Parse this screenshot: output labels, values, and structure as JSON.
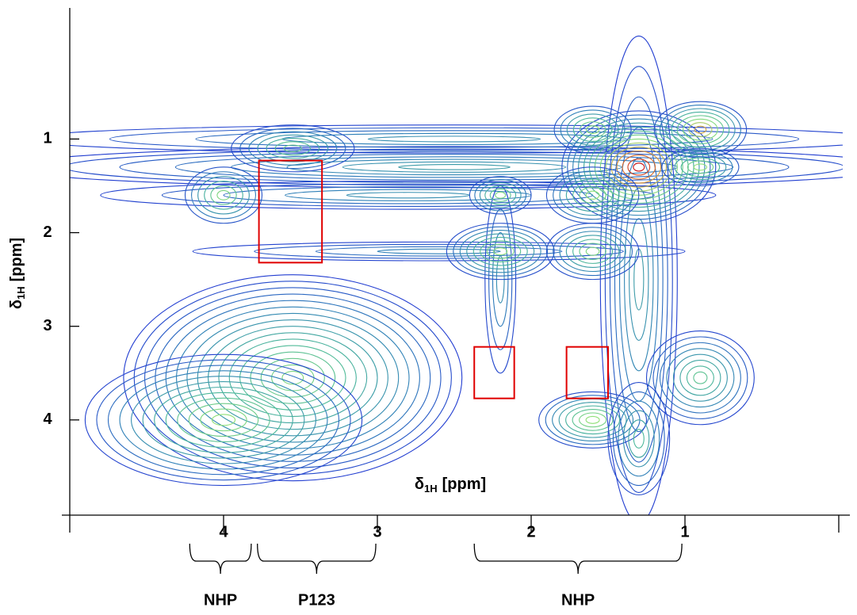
{
  "chart_data": {
    "type": "contour",
    "xlabel": {
      "symbol": "δ",
      "subscript": "1H",
      "unit": "[ppm]"
    },
    "ylabel": {
      "symbol": "δ",
      "subscript": "1H",
      "unit": "[ppm]"
    },
    "xlim": [
      5,
      0
    ],
    "ylim": [
      -0.4,
      5
    ],
    "xticks": [
      4,
      3,
      2,
      1
    ],
    "yticks": [
      1,
      2,
      3,
      4
    ],
    "colormap": [
      "#1f2fd6",
      "#2f80b8",
      "#4cb89a",
      "#90e078",
      "#e09030",
      "#c81010"
    ],
    "peaks": [
      {
        "x": 2.5,
        "y": 1.3,
        "rx": 2.9,
        "ry": 0.22,
        "levels": 8,
        "intensity": 0.3
      },
      {
        "x": 2.5,
        "y": 1.0,
        "rx": 2.8,
        "ry": 0.15,
        "levels": 5,
        "intensity": 0.25
      },
      {
        "x": 2.8,
        "y": 1.6,
        "rx": 2.0,
        "ry": 0.15,
        "levels": 5,
        "intensity": 0.25
      },
      {
        "x": 2.6,
        "y": 2.2,
        "rx": 1.6,
        "ry": 0.1,
        "levels": 4,
        "intensity": 0.2
      },
      {
        "x": 1.3,
        "y": 2.5,
        "rx": 0.25,
        "ry": 2.6,
        "levels": 8,
        "intensity": 0.3
      },
      {
        "x": 2.2,
        "y": 2.5,
        "rx": 0.1,
        "ry": 1.0,
        "levels": 4,
        "intensity": 0.25
      },
      {
        "x": 1.3,
        "y": 1.3,
        "rx": 0.5,
        "ry": 0.6,
        "levels": 14,
        "intensity": 1
      },
      {
        "x": 0.9,
        "y": 0.9,
        "rx": 0.3,
        "ry": 0.3,
        "levels": 8,
        "intensity": 0.75
      },
      {
        "x": 1.6,
        "y": 0.9,
        "rx": 0.25,
        "ry": 0.25,
        "levels": 6,
        "intensity": 0.6
      },
      {
        "x": 0.9,
        "y": 1.3,
        "rx": 0.25,
        "ry": 0.2,
        "levels": 6,
        "intensity": 0.6
      },
      {
        "x": 1.6,
        "y": 1.6,
        "rx": 0.3,
        "ry": 0.3,
        "levels": 7,
        "intensity": 0.6
      },
      {
        "x": 2.2,
        "y": 1.6,
        "rx": 0.2,
        "ry": 0.2,
        "levels": 6,
        "intensity": 0.55
      },
      {
        "x": 2.2,
        "y": 2.2,
        "rx": 0.35,
        "ry": 0.3,
        "levels": 8,
        "intensity": 0.6
      },
      {
        "x": 1.6,
        "y": 2.2,
        "rx": 0.3,
        "ry": 0.3,
        "levels": 7,
        "intensity": 0.55
      },
      {
        "x": 4.0,
        "y": 1.6,
        "rx": 0.25,
        "ry": 0.3,
        "levels": 6,
        "intensity": 0.55
      },
      {
        "x": 3.55,
        "y": 1.1,
        "rx": 0.4,
        "ry": 0.25,
        "levels": 7,
        "intensity": 0.5
      },
      {
        "x": 3.55,
        "y": 3.55,
        "rx": 1.1,
        "ry": 1.1,
        "levels": 16,
        "intensity": 0.55
      },
      {
        "x": 4.0,
        "y": 4.0,
        "rx": 0.9,
        "ry": 0.7,
        "levels": 12,
        "intensity": 0.6
      },
      {
        "x": 1.6,
        "y": 4.0,
        "rx": 0.35,
        "ry": 0.3,
        "levels": 8,
        "intensity": 0.6
      },
      {
        "x": 0.9,
        "y": 3.55,
        "rx": 0.35,
        "ry": 0.5,
        "levels": 8,
        "intensity": 0.45
      },
      {
        "x": 1.3,
        "y": 4.2,
        "rx": 0.2,
        "ry": 0.6,
        "levels": 6,
        "intensity": 0.4
      }
    ],
    "boxes": [
      {
        "x": [
          3.77,
          3.36
        ],
        "y": [
          1.23,
          2.32
        ],
        "color": "#e00000"
      },
      {
        "x": [
          2.37,
          2.11
        ],
        "y": [
          3.22,
          3.77
        ],
        "color": "#e00000"
      },
      {
        "x": [
          1.77,
          1.5
        ],
        "y": [
          3.22,
          3.77
        ],
        "color": "#e00000"
      }
    ],
    "groups": [
      {
        "label": "NHP",
        "range": [
          4.22,
          3.82
        ]
      },
      {
        "label": "P123",
        "range": [
          3.78,
          3.01
        ]
      },
      {
        "label": "NHP",
        "range": [
          2.37,
          1.02
        ]
      }
    ]
  }
}
